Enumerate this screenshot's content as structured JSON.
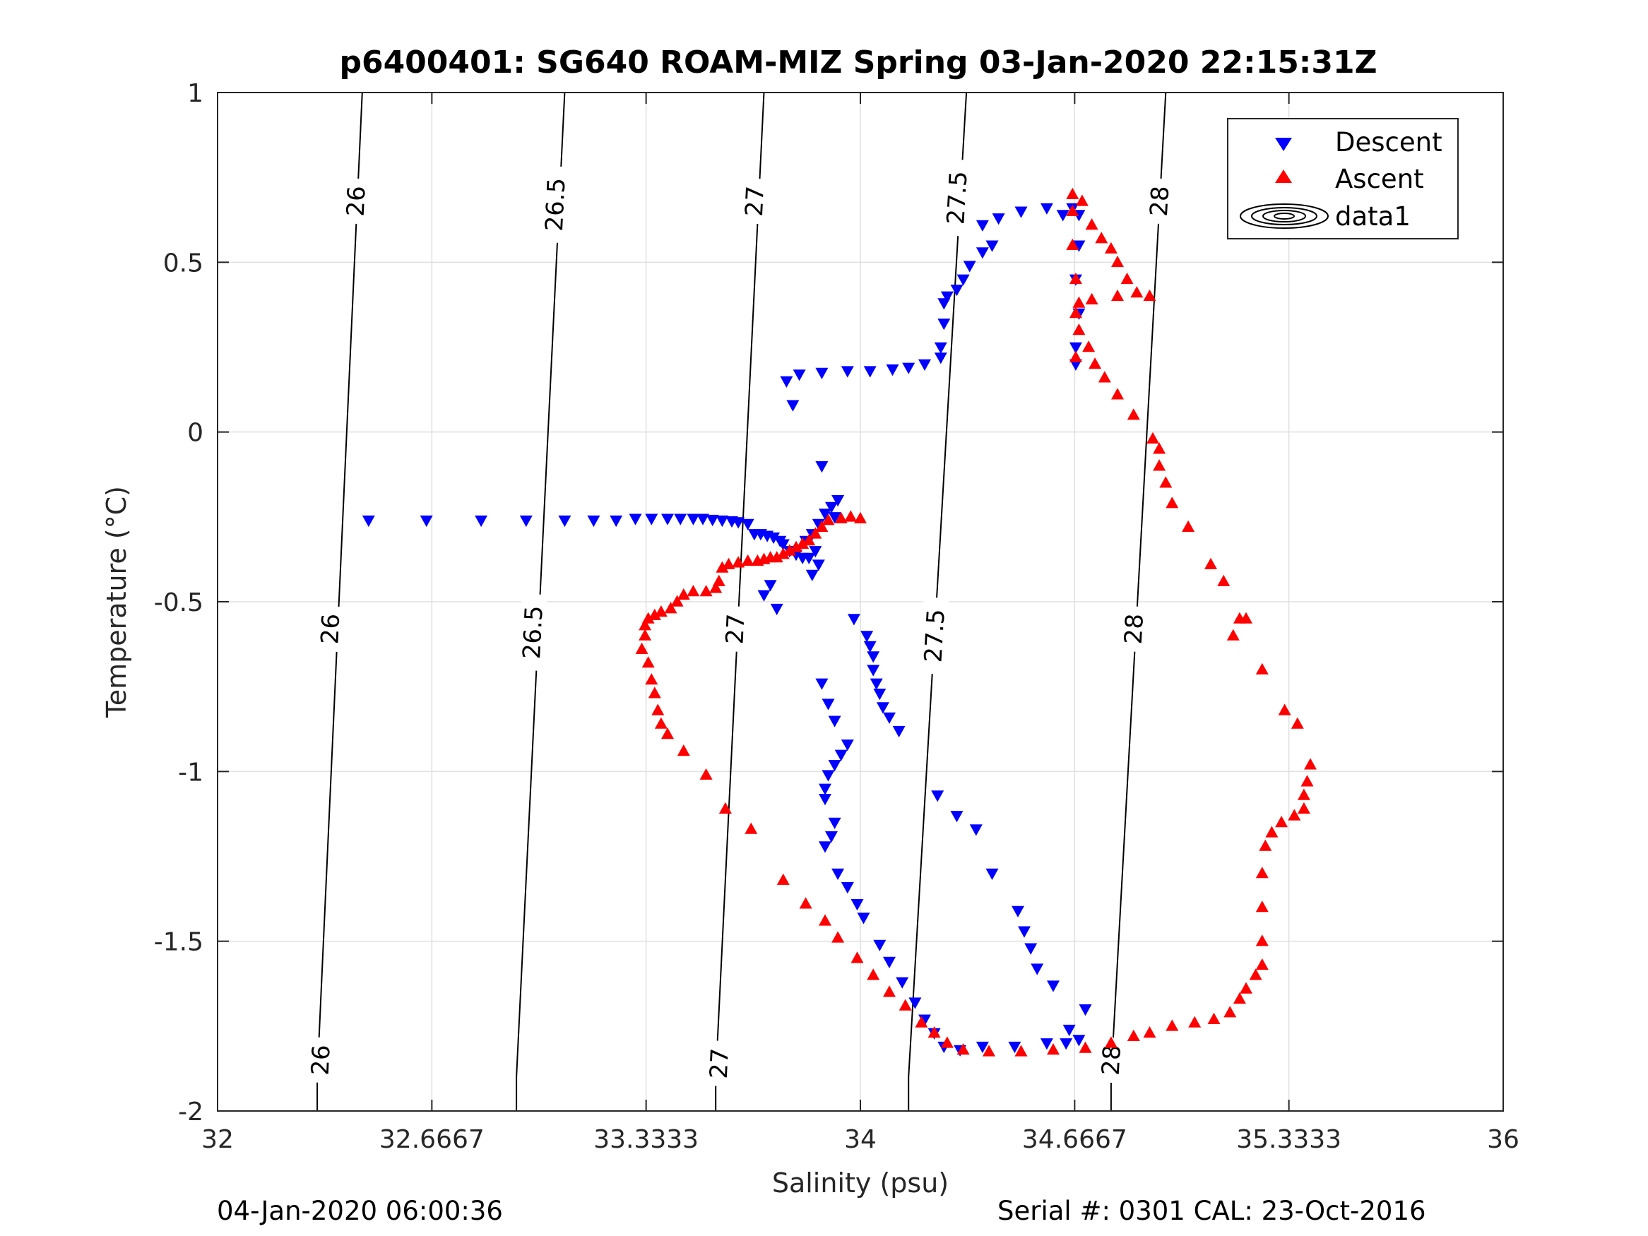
{
  "figure": {
    "title": "p6400401: SG640 ROAM-MIZ Spring 03-Jan-2020 22:15:31Z",
    "footer_left": "04-Jan-2020 06:00:36",
    "footer_right": "Serial #: 0301  CAL: 23-Oct-2016"
  },
  "chart_data": {
    "type": "scatter",
    "title": "p6400401: SG640 ROAM-MIZ Spring 03-Jan-2020 22:15:31Z",
    "xlabel": "Salinity (psu)",
    "ylabel": "Temperature (°C)",
    "xlim": [
      32,
      36
    ],
    "ylim": [
      -2,
      1
    ],
    "xticks": [
      32,
      32.6667,
      33.3333,
      34,
      34.6667,
      35.3333,
      36
    ],
    "xtick_labels": [
      "32",
      "32.6667",
      "33.3333",
      "34",
      "34.6667",
      "35.3333",
      "36"
    ],
    "yticks": [
      1,
      0.5,
      0,
      -0.5,
      -1,
      -1.5,
      -2
    ],
    "ytick_labels": [
      "1",
      "0.5",
      "0",
      "-0.5",
      "-1",
      "-1.5",
      "-2"
    ],
    "grid": true,
    "legend_position": "top-right",
    "legend": [
      "Descent",
      "Ascent",
      "data1"
    ],
    "density_contours": [
      {
        "label": "26",
        "points": [
          [
            32.45,
            1.0
          ],
          [
            32.31,
            -1.9
          ],
          [
            32.31,
            -2.0
          ]
        ],
        "label_positions": [
          [
            32.43,
            0.68
          ],
          [
            32.35,
            -0.58
          ],
          [
            32.32,
            -1.85
          ]
        ]
      },
      {
        "label": "26.5",
        "points": [
          [
            33.08,
            1.0
          ],
          [
            32.93,
            -1.9
          ],
          [
            32.93,
            -2.0
          ]
        ],
        "label_positions": [
          [
            33.05,
            0.67
          ],
          [
            32.98,
            -0.59
          ]
        ]
      },
      {
        "label": "27",
        "points": [
          [
            33.7,
            1.0
          ],
          [
            33.55,
            -1.9
          ],
          [
            33.55,
            -2.0
          ]
        ],
        "label_positions": [
          [
            33.67,
            0.68
          ],
          [
            33.61,
            -0.58
          ],
          [
            33.56,
            -1.86
          ]
        ]
      },
      {
        "label": "27.5",
        "points": [
          [
            34.33,
            1.0
          ],
          [
            34.15,
            -1.9
          ],
          [
            34.15,
            -2.0
          ]
        ],
        "label_positions": [
          [
            34.3,
            0.69
          ],
          [
            34.23,
            -0.6
          ]
        ]
      },
      {
        "label": "28",
        "points": [
          [
            34.95,
            1.0
          ],
          [
            34.78,
            -1.9
          ],
          [
            34.78,
            -2.0
          ]
        ],
        "label_positions": [
          [
            34.93,
            0.68
          ],
          [
            34.85,
            -0.58
          ],
          [
            34.78,
            -1.85
          ]
        ]
      }
    ],
    "series": [
      {
        "name": "Descent",
        "marker": "triangle-down",
        "color": "#0000ff",
        "points": [
          [
            32.47,
            -0.26
          ],
          [
            32.65,
            -0.26
          ],
          [
            32.82,
            -0.26
          ],
          [
            32.96,
            -0.26
          ],
          [
            33.08,
            -0.26
          ],
          [
            33.17,
            -0.26
          ],
          [
            33.24,
            -0.26
          ],
          [
            33.3,
            -0.255
          ],
          [
            33.35,
            -0.255
          ],
          [
            33.4,
            -0.255
          ],
          [
            33.44,
            -0.255
          ],
          [
            33.48,
            -0.255
          ],
          [
            33.51,
            -0.255
          ],
          [
            33.54,
            -0.258
          ],
          [
            33.57,
            -0.26
          ],
          [
            33.6,
            -0.262
          ],
          [
            33.62,
            -0.265
          ],
          [
            33.65,
            -0.27
          ],
          [
            33.67,
            -0.3
          ],
          [
            33.69,
            -0.3
          ],
          [
            33.71,
            -0.305
          ],
          [
            33.73,
            -0.31
          ],
          [
            33.75,
            -0.32
          ],
          [
            33.76,
            -0.33
          ],
          [
            33.78,
            -0.35
          ],
          [
            33.8,
            -0.36
          ],
          [
            33.82,
            -0.37
          ],
          [
            33.84,
            -0.37
          ],
          [
            33.86,
            -0.35
          ],
          [
            33.87,
            -0.39
          ],
          [
            33.83,
            -0.32
          ],
          [
            33.85,
            -0.3
          ],
          [
            33.87,
            -0.27
          ],
          [
            33.89,
            -0.24
          ],
          [
            33.91,
            -0.22
          ],
          [
            33.93,
            -0.2
          ],
          [
            33.92,
            -0.25
          ],
          [
            33.88,
            -0.1
          ],
          [
            33.85,
            -0.42
          ],
          [
            33.72,
            -0.45
          ],
          [
            33.7,
            -0.48
          ],
          [
            33.74,
            -0.52
          ],
          [
            33.98,
            -0.55
          ],
          [
            34.02,
            -0.6
          ],
          [
            34.03,
            -0.63
          ],
          [
            34.04,
            -0.66
          ],
          [
            34.04,
            -0.7
          ],
          [
            34.05,
            -0.74
          ],
          [
            34.06,
            -0.77
          ],
          [
            34.07,
            -0.81
          ],
          [
            34.09,
            -0.84
          ],
          [
            34.12,
            -0.88
          ],
          [
            33.88,
            -0.74
          ],
          [
            33.9,
            -0.8
          ],
          [
            33.92,
            -0.85
          ],
          [
            33.96,
            -0.92
          ],
          [
            33.94,
            -0.95
          ],
          [
            33.92,
            -0.98
          ],
          [
            33.9,
            -1.01
          ],
          [
            33.89,
            -1.05
          ],
          [
            33.89,
            -1.08
          ],
          [
            33.92,
            -1.15
          ],
          [
            33.91,
            -1.19
          ],
          [
            33.89,
            -1.22
          ],
          [
            33.93,
            -1.3
          ],
          [
            33.96,
            -1.34
          ],
          [
            33.99,
            -1.39
          ],
          [
            34.01,
            -1.43
          ],
          [
            34.06,
            -1.51
          ],
          [
            34.09,
            -1.56
          ],
          [
            34.13,
            -1.62
          ],
          [
            34.17,
            -1.68
          ],
          [
            34.2,
            -1.73
          ],
          [
            34.23,
            -1.77
          ],
          [
            34.26,
            -1.81
          ],
          [
            34.31,
            -1.82
          ],
          [
            34.38,
            -1.81
          ],
          [
            34.48,
            -1.81
          ],
          [
            34.58,
            -1.8
          ],
          [
            34.64,
            -1.8
          ],
          [
            34.68,
            -1.79
          ],
          [
            34.7,
            -1.7
          ],
          [
            34.65,
            -1.76
          ],
          [
            34.6,
            -1.63
          ],
          [
            34.55,
            -1.58
          ],
          [
            34.53,
            -1.52
          ],
          [
            34.51,
            -1.47
          ],
          [
            34.49,
            -1.41
          ],
          [
            34.41,
            -1.3
          ],
          [
            34.36,
            -1.17
          ],
          [
            34.3,
            -1.13
          ],
          [
            34.24,
            -1.07
          ],
          [
            34.63,
            0.64
          ],
          [
            34.66,
            0.66
          ],
          [
            34.68,
            0.64
          ],
          [
            34.68,
            0.55
          ],
          [
            34.67,
            0.45
          ],
          [
            34.68,
            0.35
          ],
          [
            34.67,
            0.25
          ],
          [
            34.67,
            0.2
          ],
          [
            34.58,
            0.66
          ],
          [
            34.5,
            0.65
          ],
          [
            34.43,
            0.63
          ],
          [
            34.38,
            0.61
          ],
          [
            34.41,
            0.55
          ],
          [
            34.38,
            0.53
          ],
          [
            34.34,
            0.49
          ],
          [
            34.32,
            0.45
          ],
          [
            34.3,
            0.42
          ],
          [
            34.27,
            0.4
          ],
          [
            34.26,
            0.38
          ],
          [
            34.26,
            0.32
          ],
          [
            34.25,
            0.25
          ],
          [
            34.25,
            0.22
          ],
          [
            34.2,
            0.2
          ],
          [
            34.15,
            0.19
          ],
          [
            34.1,
            0.185
          ],
          [
            34.03,
            0.18
          ],
          [
            33.96,
            0.18
          ],
          [
            33.88,
            0.175
          ],
          [
            33.81,
            0.17
          ],
          [
            33.77,
            0.15
          ],
          [
            33.79,
            0.08
          ]
        ]
      },
      {
        "name": "Ascent",
        "marker": "triangle-up",
        "color": "#ff0000",
        "points": [
          [
            34.0,
            -0.255
          ],
          [
            33.97,
            -0.25
          ],
          [
            33.94,
            -0.255
          ],
          [
            33.9,
            -0.26
          ],
          [
            33.88,
            -0.28
          ],
          [
            33.86,
            -0.3
          ],
          [
            33.84,
            -0.32
          ],
          [
            33.82,
            -0.33
          ],
          [
            33.8,
            -0.34
          ],
          [
            33.78,
            -0.35
          ],
          [
            33.76,
            -0.36
          ],
          [
            33.74,
            -0.37
          ],
          [
            33.72,
            -0.37
          ],
          [
            33.7,
            -0.375
          ],
          [
            33.68,
            -0.38
          ],
          [
            33.65,
            -0.38
          ],
          [
            33.62,
            -0.385
          ],
          [
            33.59,
            -0.39
          ],
          [
            33.57,
            -0.4
          ],
          [
            33.56,
            -0.44
          ],
          [
            33.55,
            -0.46
          ],
          [
            33.52,
            -0.47
          ],
          [
            33.48,
            -0.47
          ],
          [
            33.45,
            -0.48
          ],
          [
            33.43,
            -0.5
          ],
          [
            33.41,
            -0.52
          ],
          [
            33.38,
            -0.53
          ],
          [
            33.36,
            -0.54
          ],
          [
            33.34,
            -0.55
          ],
          [
            33.33,
            -0.57
          ],
          [
            33.33,
            -0.6
          ],
          [
            33.32,
            -0.64
          ],
          [
            33.34,
            -0.68
          ],
          [
            33.35,
            -0.73
          ],
          [
            33.36,
            -0.77
          ],
          [
            33.37,
            -0.82
          ],
          [
            33.38,
            -0.86
          ],
          [
            33.4,
            -0.89
          ],
          [
            33.45,
            -0.94
          ],
          [
            33.52,
            -1.01
          ],
          [
            33.58,
            -1.11
          ],
          [
            33.66,
            -1.17
          ],
          [
            33.76,
            -1.32
          ],
          [
            33.83,
            -1.39
          ],
          [
            33.89,
            -1.44
          ],
          [
            33.93,
            -1.49
          ],
          [
            33.99,
            -1.55
          ],
          [
            34.04,
            -1.6
          ],
          [
            34.09,
            -1.65
          ],
          [
            34.14,
            -1.69
          ],
          [
            34.19,
            -1.74
          ],
          [
            34.23,
            -1.77
          ],
          [
            34.27,
            -1.8
          ],
          [
            34.32,
            -1.82
          ],
          [
            34.4,
            -1.825
          ],
          [
            34.5,
            -1.825
          ],
          [
            34.6,
            -1.82
          ],
          [
            34.7,
            -1.815
          ],
          [
            34.78,
            -1.8
          ],
          [
            34.85,
            -1.78
          ],
          [
            34.9,
            -1.77
          ],
          [
            34.97,
            -1.75
          ],
          [
            35.04,
            -1.74
          ],
          [
            35.1,
            -1.73
          ],
          [
            35.15,
            -1.71
          ],
          [
            35.18,
            -1.67
          ],
          [
            35.2,
            -1.64
          ],
          [
            35.23,
            -1.6
          ],
          [
            35.25,
            -1.57
          ],
          [
            35.25,
            -1.5
          ],
          [
            35.25,
            -1.4
          ],
          [
            35.25,
            -1.3
          ],
          [
            35.26,
            -1.22
          ],
          [
            35.28,
            -1.18
          ],
          [
            35.31,
            -1.15
          ],
          [
            35.35,
            -1.13
          ],
          [
            35.38,
            -1.11
          ],
          [
            35.38,
            -1.07
          ],
          [
            35.39,
            -1.03
          ],
          [
            35.4,
            -0.98
          ],
          [
            35.36,
            -0.86
          ],
          [
            35.32,
            -0.82
          ],
          [
            35.25,
            -0.7
          ],
          [
            35.2,
            -0.55
          ],
          [
            35.16,
            -0.6
          ],
          [
            35.18,
            -0.55
          ],
          [
            35.13,
            -0.44
          ],
          [
            35.09,
            -0.39
          ],
          [
            35.02,
            -0.28
          ],
          [
            34.97,
            -0.21
          ],
          [
            34.95,
            -0.15
          ],
          [
            34.93,
            -0.1
          ],
          [
            34.93,
            -0.05
          ],
          [
            34.91,
            -0.02
          ],
          [
            34.85,
            0.05
          ],
          [
            34.8,
            0.11
          ],
          [
            34.76,
            0.16
          ],
          [
            34.73,
            0.2
          ],
          [
            34.71,
            0.25
          ],
          [
            34.68,
            0.3
          ],
          [
            34.67,
            0.22
          ],
          [
            34.67,
            0.35
          ],
          [
            34.67,
            0.45
          ],
          [
            34.66,
            0.55
          ],
          [
            34.66,
            0.65
          ],
          [
            34.66,
            0.7
          ],
          [
            34.69,
            0.68
          ],
          [
            34.72,
            0.61
          ],
          [
            34.75,
            0.57
          ],
          [
            34.78,
            0.54
          ],
          [
            34.8,
            0.5
          ],
          [
            34.83,
            0.45
          ],
          [
            34.86,
            0.41
          ],
          [
            34.9,
            0.4
          ],
          [
            34.8,
            0.4
          ],
          [
            34.72,
            0.39
          ],
          [
            34.68,
            0.38
          ]
        ]
      }
    ]
  }
}
